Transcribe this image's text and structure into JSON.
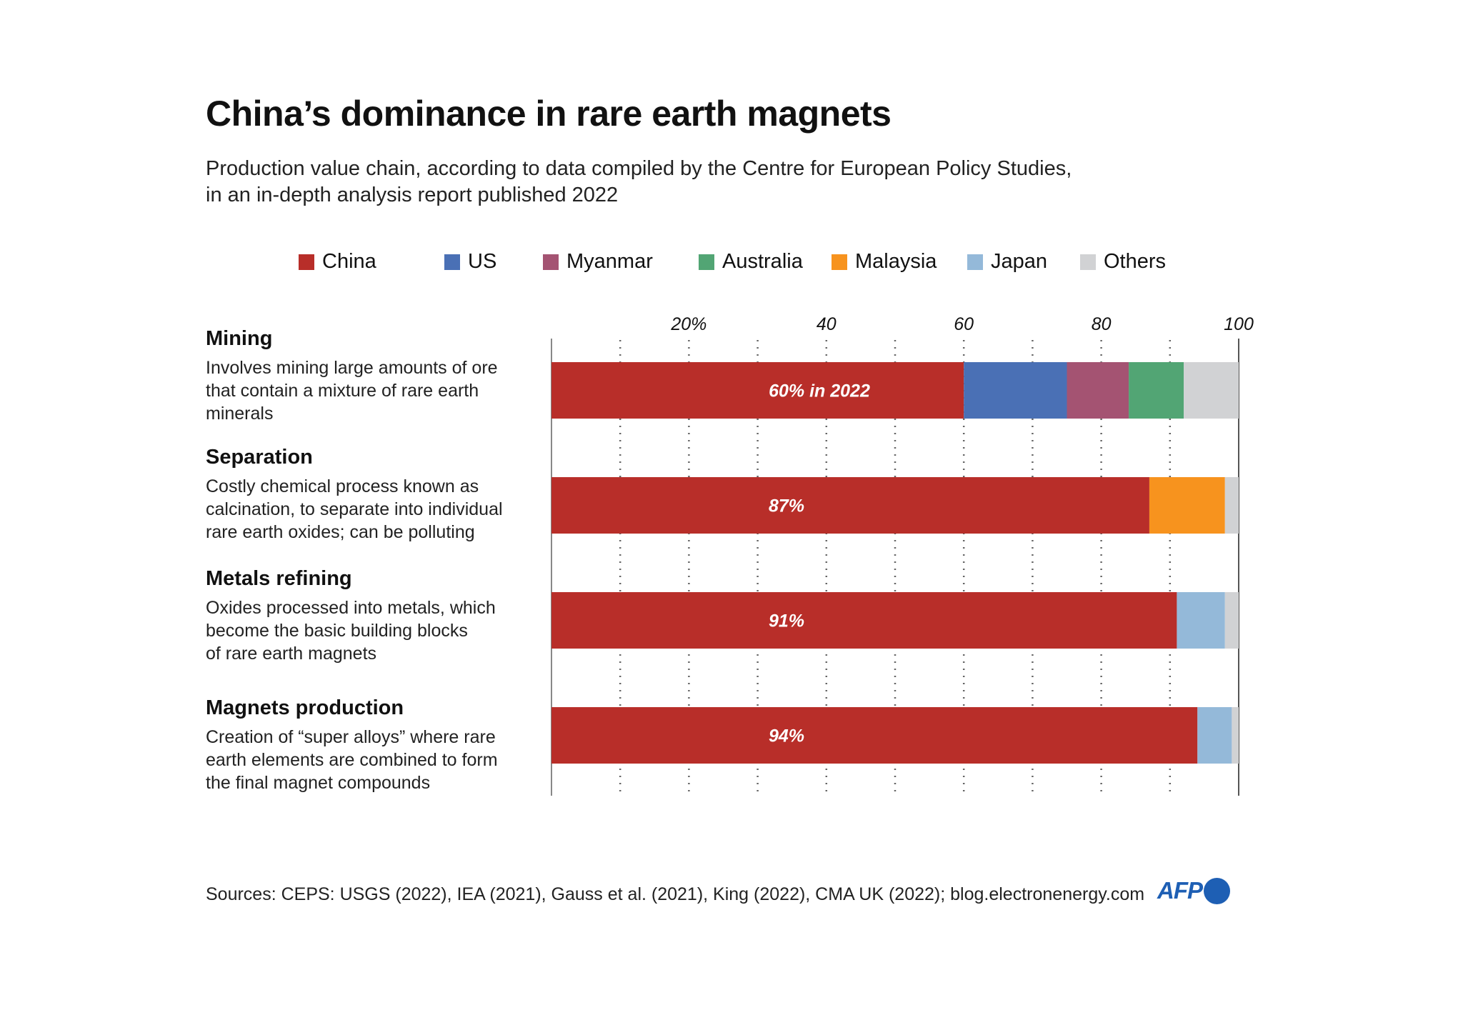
{
  "title": "China’s dominance in rare earth magnets",
  "subtitle_lines": [
    "Production value chain, according to data compiled by the Centre for European Policy Studies,",
    "in an in-depth analysis report published 2022"
  ],
  "source": "Sources: CEPS: USGS (2022), IEA (2021), Gauss et al. (2021), King (2022), CMA UK (2022); blog.electronenergy.com",
  "logo": "AFP",
  "chart_data": {
    "type": "bar",
    "orientation": "horizontal",
    "stacked": true,
    "xlim": [
      0,
      100
    ],
    "x_ticks": [
      20,
      40,
      60,
      80,
      100
    ],
    "x_tick_labels": [
      "20%",
      "40",
      "60",
      "80",
      "100"
    ],
    "grid": "vertical dotted every 10",
    "legend_placement": "top",
    "legend": [
      {
        "name": "China",
        "color": "#b82e29"
      },
      {
        "name": "US",
        "color": "#4a70b5"
      },
      {
        "name": "Myanmar",
        "color": "#a45372"
      },
      {
        "name": "Australia",
        "color": "#52a574"
      },
      {
        "name": "Malaysia",
        "color": "#f7931e"
      },
      {
        "name": "Japan",
        "color": "#94b9d9"
      },
      {
        "name": "Others",
        "color": "#d1d2d4"
      }
    ],
    "categories": [
      {
        "name": "Mining",
        "description": [
          "Involves mining large amounts of ore",
          "that contain a mixture of rare earth",
          "minerals"
        ],
        "label": "60% in 2022",
        "segments": [
          {
            "series": "China",
            "value": 60
          },
          {
            "series": "US",
            "value": 15
          },
          {
            "series": "Myanmar",
            "value": 9
          },
          {
            "series": "Australia",
            "value": 8
          },
          {
            "series": "Others",
            "value": 8
          }
        ]
      },
      {
        "name": "Separation",
        "description": [
          "Costly chemical process known as",
          "calcination, to separate into individual",
          "rare earth oxides; can be polluting"
        ],
        "label": "87%",
        "segments": [
          {
            "series": "China",
            "value": 87
          },
          {
            "series": "Malaysia",
            "value": 11
          },
          {
            "series": "Others",
            "value": 2
          }
        ]
      },
      {
        "name": "Metals refining",
        "description": [
          "Oxides processed into metals, which",
          "become the basic building blocks",
          "of rare earth magnets"
        ],
        "label": "91%",
        "segments": [
          {
            "series": "China",
            "value": 91
          },
          {
            "series": "Japan",
            "value": 7
          },
          {
            "series": "Others",
            "value": 2
          }
        ]
      },
      {
        "name": "Magnets production",
        "description": [
          "Creation of “super alloys” where rare",
          "earth elements are combined to form",
          "the final magnet compounds"
        ],
        "label": "94%",
        "segments": [
          {
            "series": "China",
            "value": 94
          },
          {
            "series": "Japan",
            "value": 5
          },
          {
            "series": "Others",
            "value": 1
          }
        ]
      }
    ]
  }
}
